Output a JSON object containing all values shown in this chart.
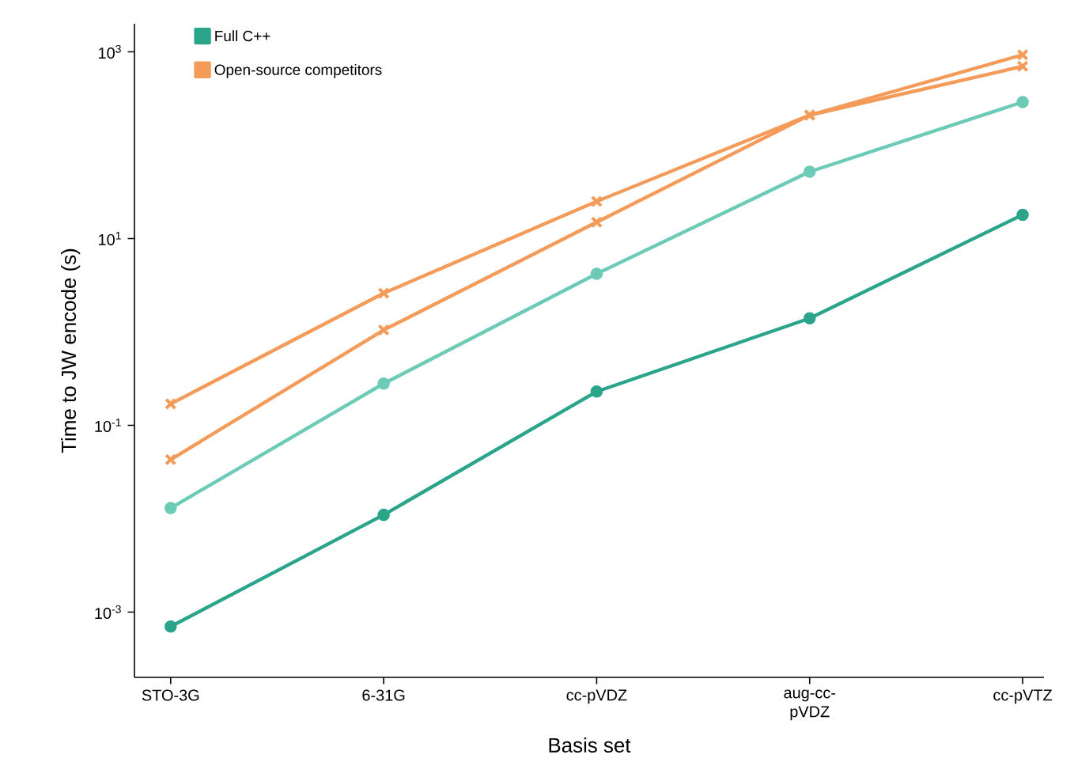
{
  "chart_data": {
    "type": "line",
    "xlabel": "Basis set",
    "ylabel": "Time to JW encode (s)",
    "categories": [
      "STO-3G",
      "6-31G",
      "cc-pVDZ",
      "aug-cc-pVDZ",
      "cc-pVTZ"
    ],
    "series": [
      {
        "color": "#6ccbb6",
        "marker": "circle",
        "values": [
          0.013,
          0.28,
          4.2,
          52,
          290
        ]
      },
      {
        "name": "Full C++",
        "color": "#2aa58a",
        "marker": "circle",
        "values": [
          0.0007,
          0.011,
          0.23,
          1.4,
          18
        ]
      },
      {
        "name": "Open-source competitors",
        "color": "#f59b5a",
        "marker": "cross",
        "values": [
          0.17,
          2.6,
          25,
          210,
          700
        ]
      },
      {
        "color": "#f59b5a",
        "marker": "cross",
        "values": [
          0.043,
          1.05,
          15,
          210,
          930
        ]
      }
    ],
    "log": "y",
    "ylim": [
      0.0002,
      2000
    ],
    "yticks": [
      {
        "value": 0.001,
        "label": "10$^{-3}$"
      },
      {
        "value": 0.1,
        "label": "10$^{-1}$"
      },
      {
        "value": 10,
        "label": "10$^{1}$"
      },
      {
        "value": 1000,
        "label": "10$^{3}$"
      }
    ],
    "grid": false,
    "legend": "top left"
  }
}
